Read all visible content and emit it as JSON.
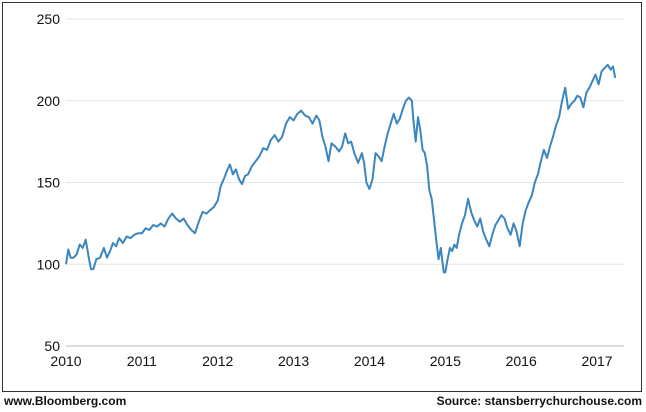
{
  "chart_data": {
    "type": "line",
    "title": "",
    "xlabel": "",
    "ylabel": "",
    "xlim": [
      2010.0,
      2017.25
    ],
    "ylim": [
      50,
      250
    ],
    "xticks": [
      2010,
      2011,
      2012,
      2013,
      2014,
      2015,
      2016,
      2017
    ],
    "yticks": [
      50,
      100,
      150,
      200,
      250
    ],
    "grid": "horizontal",
    "line_color": "#3b86bf",
    "series": [
      {
        "name": "",
        "points": [
          [
            2010.0,
            100
          ],
          [
            2010.03,
            109
          ],
          [
            2010.06,
            104
          ],
          [
            2010.1,
            104
          ],
          [
            2010.14,
            106
          ],
          [
            2010.18,
            112
          ],
          [
            2010.22,
            110
          ],
          [
            2010.26,
            115
          ],
          [
            2010.3,
            104
          ],
          [
            2010.33,
            97
          ],
          [
            2010.36,
            97
          ],
          [
            2010.4,
            103
          ],
          [
            2010.45,
            104
          ],
          [
            2010.5,
            110
          ],
          [
            2010.54,
            104
          ],
          [
            2010.58,
            108
          ],
          [
            2010.62,
            113
          ],
          [
            2010.66,
            111
          ],
          [
            2010.7,
            116
          ],
          [
            2010.75,
            113
          ],
          [
            2010.8,
            117
          ],
          [
            2010.85,
            116
          ],
          [
            2010.9,
            118
          ],
          [
            2010.95,
            119
          ],
          [
            2011.0,
            119
          ],
          [
            2011.05,
            122
          ],
          [
            2011.1,
            121
          ],
          [
            2011.15,
            124
          ],
          [
            2011.2,
            123
          ],
          [
            2011.25,
            125
          ],
          [
            2011.3,
            123
          ],
          [
            2011.35,
            128
          ],
          [
            2011.4,
            131
          ],
          [
            2011.45,
            128
          ],
          [
            2011.5,
            126
          ],
          [
            2011.55,
            128
          ],
          [
            2011.6,
            124
          ],
          [
            2011.65,
            121
          ],
          [
            2011.7,
            119
          ],
          [
            2011.75,
            126
          ],
          [
            2011.8,
            132
          ],
          [
            2011.85,
            131
          ],
          [
            2011.9,
            133
          ],
          [
            2011.95,
            135
          ],
          [
            2012.0,
            139
          ],
          [
            2012.04,
            148
          ],
          [
            2012.08,
            152
          ],
          [
            2012.12,
            157
          ],
          [
            2012.16,
            161
          ],
          [
            2012.2,
            155
          ],
          [
            2012.24,
            158
          ],
          [
            2012.28,
            152
          ],
          [
            2012.32,
            149
          ],
          [
            2012.36,
            154
          ],
          [
            2012.4,
            155
          ],
          [
            2012.45,
            160
          ],
          [
            2012.5,
            163
          ],
          [
            2012.55,
            166
          ],
          [
            2012.6,
            171
          ],
          [
            2012.65,
            170
          ],
          [
            2012.7,
            176
          ],
          [
            2012.75,
            179
          ],
          [
            2012.8,
            175
          ],
          [
            2012.85,
            178
          ],
          [
            2012.9,
            186
          ],
          [
            2012.95,
            190
          ],
          [
            2013.0,
            188
          ],
          [
            2013.05,
            192
          ],
          [
            2013.1,
            194
          ],
          [
            2013.15,
            191
          ],
          [
            2013.2,
            190
          ],
          [
            2013.25,
            186
          ],
          [
            2013.3,
            191
          ],
          [
            2013.34,
            188
          ],
          [
            2013.38,
            178
          ],
          [
            2013.42,
            172
          ],
          [
            2013.46,
            163
          ],
          [
            2013.5,
            174
          ],
          [
            2013.55,
            172
          ],
          [
            2013.6,
            169
          ],
          [
            2013.64,
            172
          ],
          [
            2013.68,
            180
          ],
          [
            2013.72,
            174
          ],
          [
            2013.76,
            175
          ],
          [
            2013.8,
            168
          ],
          [
            2013.85,
            162
          ],
          [
            2013.9,
            168
          ],
          [
            2013.93,
            162
          ],
          [
            2013.96,
            150
          ],
          [
            2014.0,
            146
          ],
          [
            2014.04,
            152
          ],
          [
            2014.08,
            168
          ],
          [
            2014.12,
            166
          ],
          [
            2014.16,
            163
          ],
          [
            2014.2,
            172
          ],
          [
            2014.24,
            180
          ],
          [
            2014.28,
            186
          ],
          [
            2014.32,
            192
          ],
          [
            2014.36,
            186
          ],
          [
            2014.4,
            189
          ],
          [
            2014.44,
            195
          ],
          [
            2014.48,
            200
          ],
          [
            2014.52,
            202
          ],
          [
            2014.56,
            200
          ],
          [
            2014.58,
            188
          ],
          [
            2014.61,
            175
          ],
          [
            2014.64,
            190
          ],
          [
            2014.67,
            182
          ],
          [
            2014.7,
            170
          ],
          [
            2014.73,
            168
          ],
          [
            2014.76,
            160
          ],
          [
            2014.79,
            145
          ],
          [
            2014.82,
            140
          ],
          [
            2014.85,
            128
          ],
          [
            2014.88,
            115
          ],
          [
            2014.91,
            103
          ],
          [
            2014.94,
            110
          ],
          [
            2014.96,
            102
          ],
          [
            2014.98,
            95
          ],
          [
            2015.0,
            95
          ],
          [
            2015.03,
            103
          ],
          [
            2015.06,
            110
          ],
          [
            2015.09,
            108
          ],
          [
            2015.12,
            112
          ],
          [
            2015.15,
            110
          ],
          [
            2015.18,
            118
          ],
          [
            2015.22,
            125
          ],
          [
            2015.26,
            130
          ],
          [
            2015.3,
            140
          ],
          [
            2015.34,
            132
          ],
          [
            2015.38,
            127
          ],
          [
            2015.42,
            123
          ],
          [
            2015.46,
            128
          ],
          [
            2015.5,
            120
          ],
          [
            2015.54,
            115
          ],
          [
            2015.58,
            111
          ],
          [
            2015.62,
            118
          ],
          [
            2015.66,
            124
          ],
          [
            2015.7,
            127
          ],
          [
            2015.74,
            130
          ],
          [
            2015.78,
            128
          ],
          [
            2015.82,
            122
          ],
          [
            2015.86,
            118
          ],
          [
            2015.9,
            125
          ],
          [
            2015.94,
            120
          ],
          [
            2015.98,
            111
          ],
          [
            2016.02,
            125
          ],
          [
            2016.06,
            133
          ],
          [
            2016.1,
            138
          ],
          [
            2016.14,
            142
          ],
          [
            2016.18,
            150
          ],
          [
            2016.22,
            155
          ],
          [
            2016.26,
            163
          ],
          [
            2016.3,
            170
          ],
          [
            2016.34,
            165
          ],
          [
            2016.38,
            172
          ],
          [
            2016.42,
            178
          ],
          [
            2016.46,
            185
          ],
          [
            2016.5,
            190
          ],
          [
            2016.54,
            200
          ],
          [
            2016.58,
            208
          ],
          [
            2016.62,
            195
          ],
          [
            2016.66,
            198
          ],
          [
            2016.7,
            200
          ],
          [
            2016.74,
            203
          ],
          [
            2016.78,
            202
          ],
          [
            2016.82,
            196
          ],
          [
            2016.86,
            205
          ],
          [
            2016.9,
            208
          ],
          [
            2016.94,
            212
          ],
          [
            2016.98,
            216
          ],
          [
            2017.02,
            210
          ],
          [
            2017.06,
            218
          ],
          [
            2017.1,
            220
          ],
          [
            2017.14,
            222
          ],
          [
            2017.18,
            219
          ],
          [
            2017.21,
            221
          ],
          [
            2017.24,
            214
          ]
        ]
      }
    ]
  },
  "footer": {
    "left": "www.Bloomberg.com",
    "right": "Source: stansberrychurchouse.com"
  }
}
